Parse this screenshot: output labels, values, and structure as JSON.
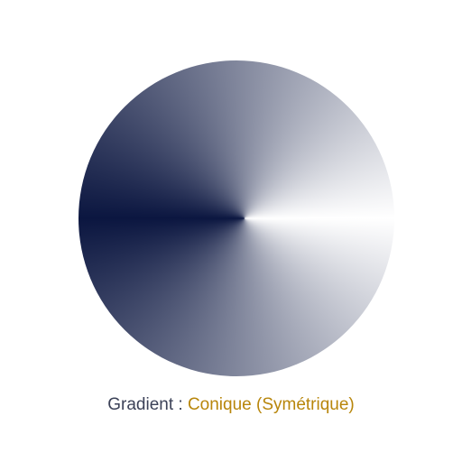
{
  "gradient": {
    "label": "Gradient",
    "separator": " : ",
    "value": "Conique (Symétrique)",
    "type": "conic-symmetric",
    "colors": {
      "start": "#ffffff",
      "end": "#0b1640"
    }
  },
  "colors": {
    "label_text": "#3c4258",
    "value_text": "#b8860b",
    "background": "#ffffff"
  }
}
